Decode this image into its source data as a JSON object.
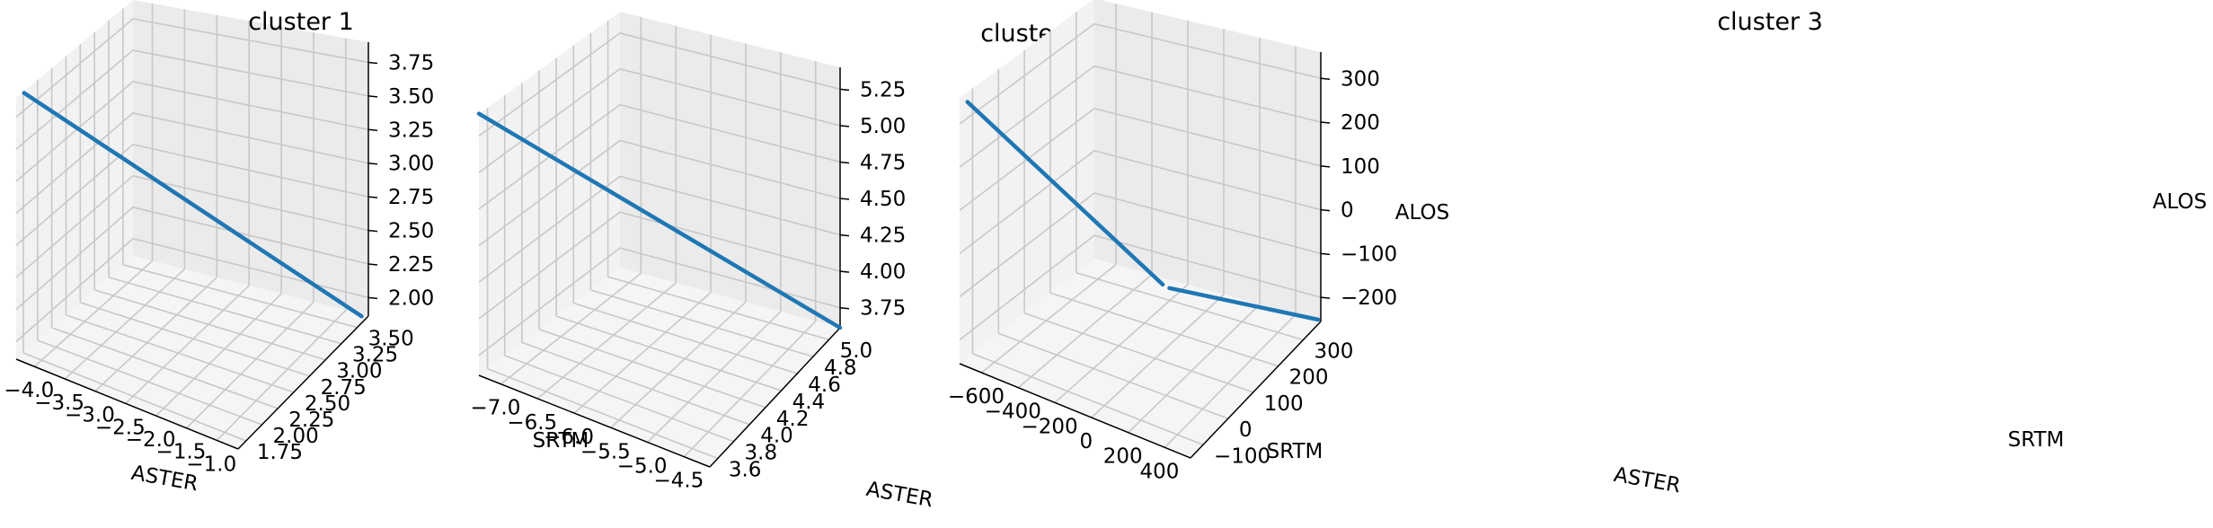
{
  "chart_data": [
    {
      "type": "line",
      "projection": "3d",
      "title": "cluster 1",
      "xlabel": "ASTER",
      "ylabel": "SRTM",
      "zlabel": "ALOS",
      "xticks": [
        "−4.0",
        "−3.5",
        "−3.0",
        "−2.5",
        "−2.0",
        "−1.5",
        "−1.0"
      ],
      "yticks": [
        "1.75",
        "2.00",
        "2.25",
        "2.50",
        "2.75",
        "3.00",
        "3.25",
        "3.50"
      ],
      "zticks": [
        "2.00",
        "2.25",
        "2.50",
        "2.75",
        "3.00",
        "3.25",
        "3.50",
        "3.75"
      ],
      "series": [
        {
          "color": "#1f77b4",
          "x": [
            -4.3,
            -0.6
          ],
          "y": [
            1.8,
            3.5
          ],
          "z": [
            3.85,
            1.9
          ]
        }
      ],
      "grid": true
    },
    {
      "type": "line",
      "projection": "3d",
      "title": "cluster 2",
      "xlabel": "ASTER",
      "ylabel": "SRTM",
      "zlabel": "ALOS",
      "xticks": [
        "−7.0",
        "−6.5",
        "−6.0",
        "−5.5",
        "−5.0",
        "−4.5"
      ],
      "yticks": [
        "3.6",
        "3.8",
        "4.0",
        "4.2",
        "4.4",
        "4.6",
        "4.8",
        "5.0"
      ],
      "zticks": [
        "3.75",
        "4.00",
        "4.25",
        "4.50",
        "4.75",
        "5.00",
        "5.25"
      ],
      "series": [
        {
          "color": "#1f77b4",
          "x": [
            -7.4,
            -4.2
          ],
          "y": [
            3.5,
            5.1
          ],
          "z": [
            5.35,
            3.65
          ]
        }
      ],
      "grid": true
    },
    {
      "type": "line",
      "projection": "3d",
      "title": "cluster 3",
      "xlabel": "ASTER",
      "ylabel": "SRTM",
      "zlabel": "ALOS",
      "xticks": [
        "−600",
        "−400",
        "−200",
        "0",
        "200",
        "400"
      ],
      "yticks": [
        "−100",
        "0",
        "100",
        "200",
        "300"
      ],
      "zticks": [
        "−200",
        "−100",
        "0",
        "100",
        "200",
        "300"
      ],
      "series": [
        {
          "color": "#1f77b4",
          "segments": [
            {
              "x": [
                -700,
                -60
              ],
              "y": [
                -150,
                100
              ],
              "z": [
                320,
                -100
              ]
            },
            {
              "x": [
                -40,
                420
              ],
              "y": [
                110,
                330
              ],
              "z": [
                -110,
                -240
              ]
            }
          ]
        }
      ],
      "grid": true
    }
  ]
}
